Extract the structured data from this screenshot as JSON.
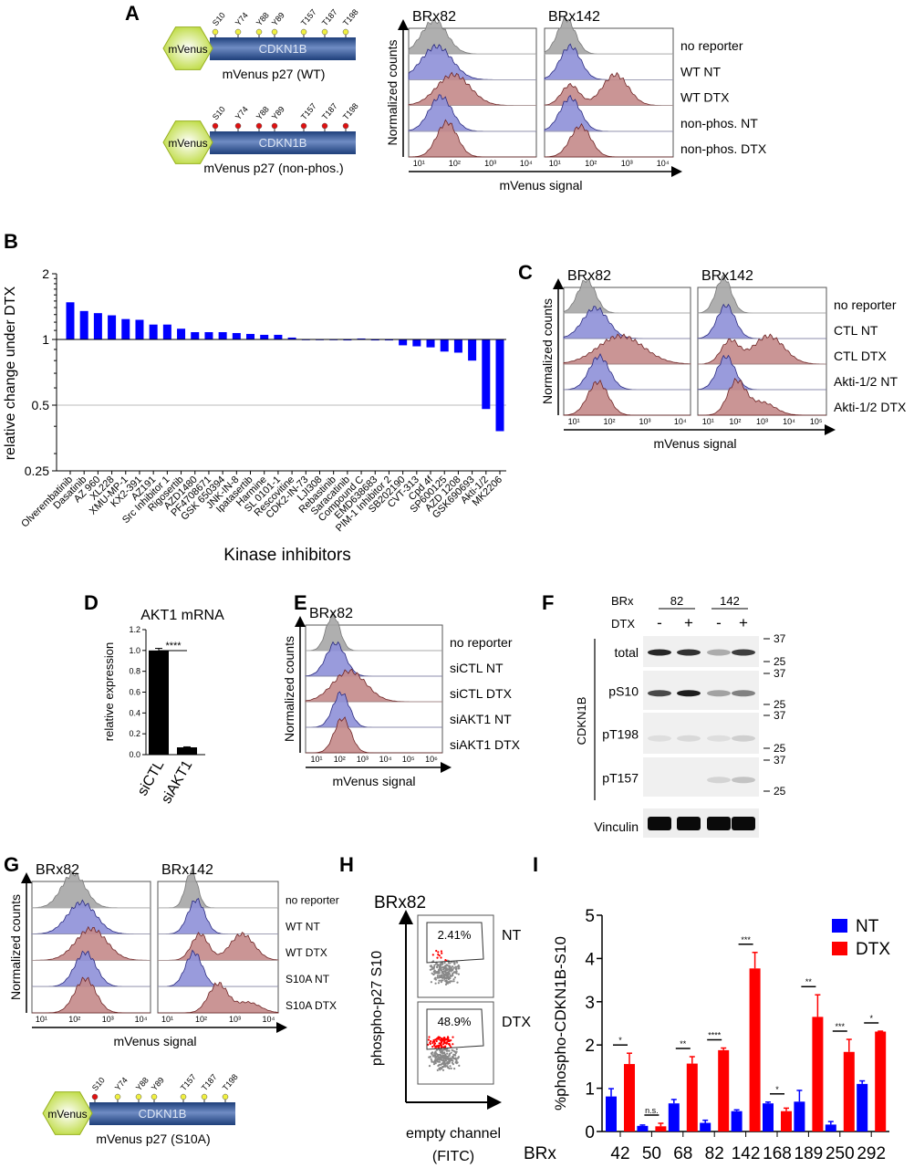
{
  "panels": {
    "A": "A",
    "B": "B",
    "C": "C",
    "D": "D",
    "E": "E",
    "F": "F",
    "G": "G",
    "H": "H",
    "I": "I"
  },
  "constructs": {
    "wt": {
      "tag": "mVenus",
      "protein": "CDKN1B",
      "caption": "mVenus p27 (WT)",
      "sites": [
        "S10",
        "Y74",
        "Y88",
        "Y89",
        "T157",
        "T187",
        "T198"
      ],
      "site_color": "#f0f040"
    },
    "nonphos": {
      "tag": "mVenus",
      "protein": "CDKN1B",
      "caption": "mVenus p27 (non-phos.)",
      "sites": [
        "S10",
        "Y74",
        "Y88",
        "Y89",
        "T157",
        "T187",
        "T198"
      ],
      "site_color": "#e01010"
    },
    "s10a": {
      "tag": "mVenus",
      "protein": "CDKN1B",
      "caption": "mVenus p27 (S10A)",
      "sites": [
        "S10",
        "Y74",
        "Y88",
        "Y89",
        "T157",
        "T187",
        "T198"
      ],
      "site_colors": [
        "#e01010",
        "#f0f040",
        "#f0f040",
        "#f0f040",
        "#f0f040",
        "#f0f040",
        "#f0f040"
      ]
    }
  },
  "histA": {
    "titles": [
      "BRx82",
      "BRx142"
    ],
    "legend": [
      "no reporter",
      "WT NT",
      "WT DTX",
      "non-phos. NT",
      "non-phos. DTX"
    ],
    "ticks": [
      "10¹",
      "10²",
      "10³",
      "10⁴"
    ],
    "ylabel": "Normalized counts",
    "xlabel": "mVenus signal"
  },
  "histC": {
    "titles": [
      "BRx82",
      "BRx142"
    ],
    "legend": [
      "no reporter",
      "CTL NT",
      "CTL DTX",
      "Akti-1/2 NT",
      "Akti-1/2 DTX"
    ],
    "ticks82": [
      "10¹",
      "10²",
      "10³",
      "10⁴"
    ],
    "ticks142": [
      "10¹",
      "10²",
      "10³",
      "10⁴",
      "10⁵"
    ],
    "ylabel": "Normalized counts",
    "xlabel": "mVenus signal"
  },
  "histE": {
    "title": "BRx82",
    "legend": [
      "no reporter",
      "siCTL NT",
      "siCTL DTX",
      "siAKT1 NT",
      "siAKT1 DTX"
    ],
    "ticks": [
      "10¹",
      "10²",
      "10³",
      "10⁴",
      "10⁵",
      "10⁶"
    ],
    "ylabel": "Normalized counts",
    "xlabel": "mVenus signal"
  },
  "histG": {
    "titles": [
      "BRx82",
      "BRx142"
    ],
    "legend": [
      "no reporter",
      "WT NT",
      "WT DTX",
      "S10A NT",
      "S10A DTX"
    ],
    "ticks": [
      "10¹",
      "10²",
      "10³",
      "10⁴"
    ],
    "ylabel": "Normalized counts",
    "xlabel": "mVenus signal"
  },
  "colors": {
    "gray": "#a6a6a6",
    "blue": "#8e90d8",
    "blue_line": "#2a2a80",
    "red": "#c48a8a",
    "red_line": "#6e2424",
    "bar_blue": "#0000ff",
    "bar_red": "#ff0000"
  },
  "blot": {
    "brx_label": "BRx",
    "dtx_label": "DTX",
    "lines": [
      "82",
      "142"
    ],
    "dtx": [
      "-",
      "+",
      "-",
      "+"
    ],
    "rows": [
      "total",
      "pS10",
      "pT198",
      "pT157"
    ],
    "group_label": "CDKN1B",
    "loading": "Vinculin",
    "markers": [
      "37",
      "25"
    ]
  },
  "facs": {
    "title": "BRx82",
    "conditions": [
      "NT",
      "DTX"
    ],
    "gates": [
      "2.41%",
      "48.9%"
    ],
    "ylabel": "phospho-p27 S10",
    "xlabel": "empty channel",
    "xlabel2": "(FITC)"
  },
  "chart_data": [
    {
      "type": "bar",
      "panel": "B",
      "ylabel": "relative change under DTX",
      "xlabel": "Kinase inhibitors",
      "yscale": "log2",
      "ylim": [
        0.25,
        2
      ],
      "yticks": [
        "2",
        "1",
        "0.5",
        "0.25"
      ],
      "reference_lines": [
        1,
        0.5
      ],
      "categories": [
        "Olverembatinib",
        "Dasatinib",
        "AZ 960",
        "XL228",
        "XMU-MP-1",
        "KX2-391",
        "AZ191",
        "Src Inhibitor 1",
        "Rigosertib",
        "AZD1480",
        "PF4708671",
        "GSK 650394",
        "JNK-IN-8",
        "Ipatasertib",
        "Harmine",
        "SL 0101-1",
        "Rescovitine",
        "CDK2-IN-73",
        "LJI308",
        "Rebastinib",
        "Saracatinib",
        "Compound C",
        "EMD638683",
        "PIM-1 Inhibitor 2",
        "SB202190",
        "CVT-313",
        "Cpd 4f",
        "SP600125",
        "AZD 1208",
        "GSK690693",
        "Akti-1/2",
        "MK2206"
      ],
      "values": [
        1.48,
        1.35,
        1.32,
        1.29,
        1.24,
        1.23,
        1.17,
        1.17,
        1.12,
        1.08,
        1.08,
        1.08,
        1.07,
        1.06,
        1.05,
        1.05,
        1.02,
        1.0,
        1.0,
        1.0,
        0.99,
        1.01,
        0.99,
        0.99,
        0.94,
        0.93,
        0.92,
        0.88,
        0.87,
        0.8,
        0.48,
        0.38
      ],
      "color": "#0000ff"
    },
    {
      "type": "bar",
      "panel": "D",
      "title": "AKT1 mRNA",
      "ylabel": "relative expression",
      "ylim": [
        0,
        1.2
      ],
      "yticks": [
        "0.0",
        "0.2",
        "0.4",
        "0.6",
        "0.8",
        "1.0",
        "1.2"
      ],
      "categories": [
        "siCTL",
        "siAKT1"
      ],
      "values": [
        1.0,
        0.07
      ],
      "errors": [
        0.02,
        0.005
      ],
      "significance": "****",
      "color": "#000000"
    },
    {
      "type": "bar",
      "panel": "I",
      "ylabel": "%phospho-CDKN1B-S10",
      "xlabel": "BRx",
      "ylim": [
        0,
        5
      ],
      "yticks": [
        "0",
        "1",
        "2",
        "3",
        "4",
        "5"
      ],
      "categories": [
        "42",
        "50",
        "68",
        "82",
        "142",
        "168",
        "189",
        "250",
        "292"
      ],
      "series": [
        {
          "name": "NT",
          "color": "#0000ff",
          "values": [
            0.81,
            0.13,
            0.65,
            0.2,
            0.47,
            0.65,
            0.69,
            0.16,
            1.1
          ],
          "errors": [
            0.18,
            0.02,
            0.09,
            0.06,
            0.03,
            0.03,
            0.26,
            0.07,
            0.07
          ]
        },
        {
          "name": "DTX",
          "color": "#ff0000",
          "values": [
            1.56,
            0.12,
            1.57,
            1.88,
            3.77,
            0.47,
            2.65,
            1.84,
            2.31
          ],
          "errors": [
            0.25,
            0.07,
            0.16,
            0.05,
            0.37,
            0.07,
            0.51,
            0.29,
            0.01
          ]
        }
      ],
      "significance": [
        "*",
        "n.s.",
        "**",
        "****",
        "***",
        "*",
        "**",
        "***",
        "*"
      ],
      "legend": "top-right"
    }
  ]
}
